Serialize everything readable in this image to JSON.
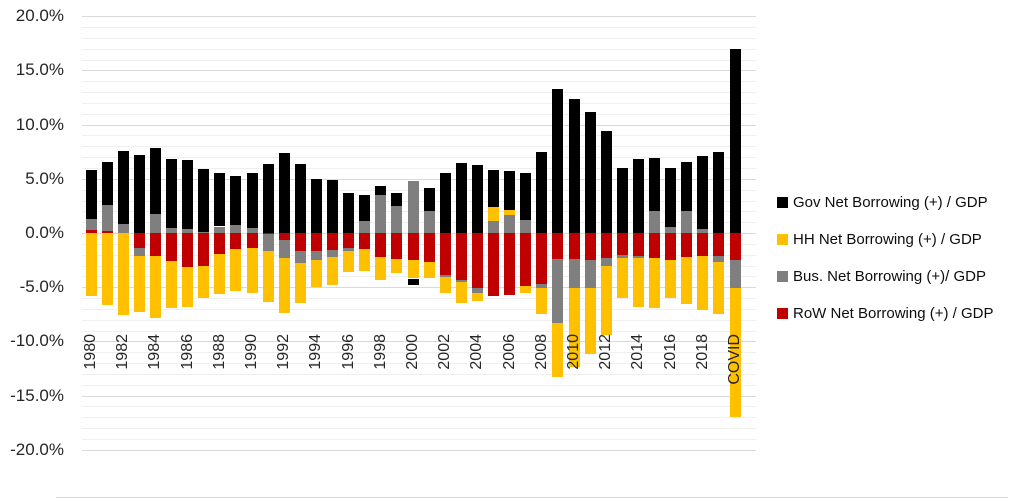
{
  "chart_data": {
    "type": "bar",
    "stacked": true,
    "title": "",
    "xlabel": "",
    "ylabel": "",
    "categories": [
      "1980",
      "1981",
      "1982",
      "1983",
      "1984",
      "1985",
      "1986",
      "1987",
      "1988",
      "1989",
      "1990",
      "1991",
      "1992",
      "1993",
      "1994",
      "1995",
      "1996",
      "1997",
      "1998",
      "1999",
      "2000",
      "2001",
      "2002",
      "2003",
      "2004",
      "2005",
      "2006",
      "2007",
      "2008",
      "2009",
      "2010",
      "2011",
      "2012",
      "2013",
      "2014",
      "2015",
      "2016",
      "2017",
      "2018",
      "2019",
      "COVID"
    ],
    "x_tick_indices": [
      0,
      2,
      4,
      6,
      8,
      10,
      12,
      14,
      16,
      18,
      20,
      22,
      24,
      26,
      28,
      30,
      32,
      34,
      36,
      38,
      40
    ],
    "x_tick_labels": [
      "1980",
      "1982",
      "1984",
      "1986",
      "1988",
      "1990",
      "1992",
      "1994",
      "1996",
      "1998",
      "2000",
      "2002",
      "2004",
      "2006",
      "2008",
      "2010",
      "2012",
      "2014",
      "2016",
      "2018",
      "COVID"
    ],
    "series": [
      {
        "name": "Gov Net Borrowing (+) / GDP",
        "color": "#000000",
        "values": [
          4.5,
          4.0,
          6.8,
          7.2,
          6.1,
          6.3,
          6.3,
          5.8,
          4.9,
          4.6,
          5.1,
          6.35,
          7.35,
          6.4,
          5.0,
          4.85,
          3.7,
          2.4,
          0.8,
          1.2,
          -0.6,
          2.1,
          5.5,
          6.45,
          6.3,
          3.4,
          3.55,
          4.35,
          7.45,
          13.3,
          12.4,
          11.2,
          9.4,
          6.0,
          6.8,
          4.9,
          5.45,
          4.6,
          6.7,
          7.45,
          17.0
        ]
      },
      {
        "name": "HH Net Borrowing (+) / GDP",
        "color": "#FFC000",
        "values": [
          -5.8,
          -6.6,
          -7.6,
          -5.1,
          -5.7,
          -4.3,
          -3.75,
          -2.95,
          -3.7,
          -3.9,
          -4.1,
          -4.7,
          -5.05,
          -3.7,
          -2.5,
          -2.6,
          -1.95,
          -2.0,
          -2.1,
          -1.3,
          -1.7,
          -1.45,
          -1.4,
          -1.9,
          -0.75,
          1.25,
          0.45,
          -0.7,
          -2.35,
          -5.0,
          -7.3,
          -6.15,
          -6.35,
          -3.7,
          -4.5,
          -4.6,
          -3.55,
          -4.4,
          -5.0,
          -4.75,
          -11.9
        ]
      },
      {
        "name": "Bus. Net Borrowing (+)/ GDP",
        "color": "#7F7F7F",
        "values": [
          1.05,
          2.4,
          0.8,
          -0.75,
          1.75,
          0.5,
          0.4,
          0.1,
          0.6,
          0.7,
          0.45,
          -1.55,
          -1.7,
          -1.1,
          -0.8,
          -0.6,
          -0.3,
          1.1,
          3.5,
          2.45,
          4.8,
          2.05,
          -0.2,
          -0.25,
          -0.45,
          1.15,
          1.7,
          1.2,
          -0.4,
          -5.9,
          -2.7,
          -2.6,
          -0.75,
          -0.3,
          -0.15,
          2.0,
          0.55,
          2.0,
          0.4,
          -0.6,
          -2.6
        ]
      },
      {
        "name": "RoW Net Borrowing (+) / GDP",
        "color": "#C00000",
        "values": [
          0.25,
          0.2,
          0.0,
          -1.4,
          -2.1,
          -2.6,
          -3.1,
          -3.0,
          -1.9,
          -1.45,
          -1.4,
          -0.1,
          -0.6,
          -1.7,
          -1.7,
          -1.6,
          -1.4,
          -1.5,
          -2.2,
          -2.35,
          -2.5,
          -2.7,
          -3.9,
          -4.3,
          -5.1,
          -5.8,
          -5.7,
          -4.85,
          -4.7,
          -2.4,
          -2.4,
          -2.45,
          -2.3,
          -2.0,
          -2.15,
          -2.3,
          -2.45,
          -2.2,
          -2.1,
          -2.1,
          -2.5
        ]
      }
    ],
    "stack_draw_order": [
      3,
      2,
      1,
      0
    ],
    "y_axis": {
      "min": -20,
      "max": 20,
      "major_step": 5,
      "minor_step": 1,
      "tick_values": [
        20,
        15,
        10,
        5,
        0,
        -5,
        -10,
        -15,
        -20
      ],
      "tick_labels": [
        "20.0%",
        "15.0%",
        "10.0%",
        "5.0%",
        "0.0%",
        "-5.0%",
        "-10.0%",
        "-15.0%",
        "-20.0%"
      ]
    },
    "grid": true,
    "legend_position": "right"
  }
}
